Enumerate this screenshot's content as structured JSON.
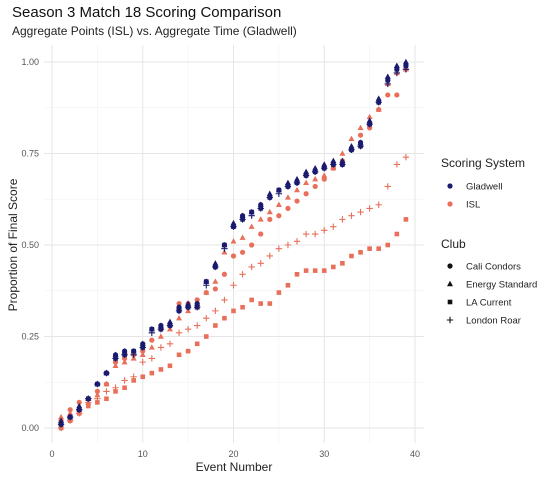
{
  "chart_data": {
    "type": "scatter",
    "title": "Season 3 Match 18 Scoring Comparison",
    "subtitle": "Aggregate Points (ISL) vs. Aggregate Time (Gladwell)",
    "xlabel": "Event Number",
    "ylabel": "Proportion of Final Score",
    "xlim": [
      0,
      40
    ],
    "ylim": [
      0,
      1
    ],
    "x_ticks": [
      0,
      10,
      20,
      30,
      40
    ],
    "y_ticks": [
      0,
      0.25,
      0.5,
      0.75,
      1
    ],
    "x_tick_labels": [
      "0",
      "10",
      "20",
      "30",
      "40"
    ],
    "y_tick_labels": [
      "0.00",
      "0.25",
      "0.50",
      "0.75",
      "1.00"
    ],
    "grid": true,
    "legend_position": "right",
    "color_legend": {
      "title": "Scoring System",
      "entries": [
        {
          "label": "Gladwell",
          "color": "#1a1a6e"
        },
        {
          "label": "ISL",
          "color": "#e8705a"
        }
      ]
    },
    "shape_legend": {
      "title": "Club",
      "entries": [
        {
          "label": "Cali Condors",
          "shape": "circle"
        },
        {
          "label": "Energy Standard",
          "shape": "triangle"
        },
        {
          "label": "LA Current",
          "shape": "square"
        },
        {
          "label": "London Roar",
          "shape": "plus"
        }
      ]
    },
    "series": [
      {
        "system": "Gladwell",
        "club": "Cali Condors",
        "x": [
          1,
          2,
          3,
          4,
          5,
          6,
          7,
          8,
          9,
          10,
          11,
          12,
          13,
          14,
          15,
          16,
          17,
          18,
          19,
          20,
          21,
          22,
          23,
          24,
          25,
          26,
          27,
          28,
          29,
          30,
          31,
          32,
          33,
          34,
          35,
          36,
          37,
          38,
          39
        ],
        "y": [
          0.01,
          0.03,
          0.05,
          0.08,
          0.12,
          0.15,
          0.2,
          0.21,
          0.21,
          0.23,
          0.27,
          0.28,
          0.28,
          0.33,
          0.33,
          0.34,
          0.4,
          0.44,
          0.5,
          0.55,
          0.58,
          0.59,
          0.61,
          0.63,
          0.65,
          0.66,
          0.67,
          0.69,
          0.7,
          0.71,
          0.72,
          0.72,
          0.76,
          0.78,
          0.83,
          0.89,
          0.95,
          0.98,
          0.99
        ]
      },
      {
        "system": "Gladwell",
        "club": "Energy Standard",
        "x": [
          1,
          2,
          3,
          4,
          5,
          6,
          7,
          8,
          9,
          10,
          11,
          12,
          13,
          14,
          15,
          16,
          17,
          18,
          19,
          20,
          21,
          22,
          23,
          24,
          25,
          26,
          27,
          28,
          29,
          30,
          31,
          32,
          33,
          34,
          35,
          36,
          37,
          38,
          39
        ],
        "y": [
          0.02,
          0.03,
          0.06,
          0.08,
          0.12,
          0.15,
          0.2,
          0.21,
          0.21,
          0.23,
          0.27,
          0.28,
          0.29,
          0.33,
          0.34,
          0.34,
          0.4,
          0.45,
          0.5,
          0.56,
          0.58,
          0.59,
          0.61,
          0.64,
          0.65,
          0.67,
          0.68,
          0.7,
          0.71,
          0.72,
          0.73,
          0.73,
          0.77,
          0.78,
          0.84,
          0.9,
          0.96,
          0.99,
          1.0
        ]
      },
      {
        "system": "Gladwell",
        "club": "LA Current",
        "x": [
          1,
          2,
          3,
          4,
          5,
          6,
          7,
          8,
          9,
          10,
          11,
          12,
          13,
          14,
          15,
          16,
          17,
          18,
          19,
          20,
          21,
          22,
          23,
          24,
          25,
          26,
          27,
          28,
          29,
          30,
          31,
          32,
          33,
          34,
          35,
          36,
          37,
          38,
          39
        ],
        "y": [
          0.01,
          0.03,
          0.05,
          0.08,
          0.12,
          0.15,
          0.19,
          0.2,
          0.21,
          0.22,
          0.27,
          0.27,
          0.28,
          0.32,
          0.33,
          0.33,
          0.4,
          0.44,
          0.5,
          0.55,
          0.57,
          0.59,
          0.6,
          0.63,
          0.65,
          0.66,
          0.67,
          0.69,
          0.7,
          0.71,
          0.72,
          0.72,
          0.76,
          0.77,
          0.83,
          0.89,
          0.95,
          0.98,
          0.99
        ]
      },
      {
        "system": "Gladwell",
        "club": "London Roar",
        "x": [
          1,
          2,
          3,
          4,
          5,
          6,
          7,
          8,
          9,
          10,
          11,
          12,
          13,
          14,
          15,
          16,
          17,
          18,
          19,
          20,
          21,
          22,
          23,
          24,
          25,
          26,
          27,
          28,
          29,
          30,
          31,
          32,
          33,
          34,
          35,
          36,
          37,
          38,
          39
        ],
        "y": [
          0.01,
          0.03,
          0.05,
          0.08,
          0.12,
          0.15,
          0.19,
          0.2,
          0.2,
          0.22,
          0.26,
          0.27,
          0.28,
          0.32,
          0.33,
          0.33,
          0.39,
          0.44,
          0.49,
          0.55,
          0.57,
          0.58,
          0.6,
          0.63,
          0.64,
          0.66,
          0.67,
          0.69,
          0.7,
          0.71,
          0.72,
          0.72,
          0.76,
          0.77,
          0.83,
          0.89,
          0.94,
          0.97,
          0.98
        ]
      },
      {
        "system": "ISL",
        "club": "Cali Condors",
        "x": [
          1,
          2,
          3,
          4,
          5,
          6,
          7,
          8,
          9,
          10,
          11,
          12,
          13,
          14,
          15,
          16,
          17,
          18,
          19,
          20,
          21,
          22,
          23,
          24,
          25,
          26,
          27,
          28,
          29,
          30,
          31,
          32,
          33,
          34,
          35,
          36,
          37,
          38,
          39
        ],
        "y": [
          0.02,
          0.05,
          0.07,
          0.08,
          0.1,
          0.12,
          0.18,
          0.19,
          0.2,
          0.21,
          0.24,
          0.27,
          0.28,
          0.34,
          0.34,
          0.35,
          0.37,
          0.38,
          0.42,
          0.47,
          0.48,
          0.5,
          0.53,
          0.57,
          0.58,
          0.6,
          0.62,
          0.64,
          0.66,
          0.68,
          0.71,
          0.73,
          0.76,
          0.8,
          0.82,
          0.87,
          0.91,
          0.91,
          0.98
        ]
      },
      {
        "system": "ISL",
        "club": "Energy Standard",
        "x": [
          1,
          2,
          3,
          4,
          5,
          6,
          7,
          8,
          9,
          10,
          11,
          12,
          13,
          14,
          15,
          16,
          17,
          18,
          19,
          20,
          21,
          22,
          23,
          24,
          25,
          26,
          27,
          28,
          29,
          30,
          31,
          32,
          33,
          34,
          35,
          36,
          37,
          38,
          39
        ],
        "y": [
          0.03,
          0.04,
          0.05,
          0.07,
          0.09,
          0.12,
          0.17,
          0.18,
          0.19,
          0.2,
          0.22,
          0.25,
          0.27,
          0.3,
          0.32,
          0.33,
          0.37,
          0.4,
          0.48,
          0.51,
          0.52,
          0.55,
          0.57,
          0.59,
          0.61,
          0.63,
          0.65,
          0.67,
          0.68,
          0.69,
          0.71,
          0.75,
          0.79,
          0.82,
          0.85,
          0.87,
          0.94,
          0.97,
          0.98
        ]
      },
      {
        "system": "ISL",
        "club": "LA Current",
        "x": [
          1,
          2,
          3,
          4,
          5,
          6,
          7,
          8,
          9,
          10,
          11,
          12,
          13,
          14,
          15,
          16,
          17,
          18,
          19,
          20,
          21,
          22,
          23,
          24,
          25,
          26,
          27,
          28,
          29,
          30,
          31,
          32,
          33,
          34,
          35,
          36,
          37,
          38,
          39
        ],
        "y": [
          0.0,
          0.02,
          0.04,
          0.06,
          0.07,
          0.08,
          0.1,
          0.11,
          0.13,
          0.14,
          0.15,
          0.16,
          0.17,
          0.2,
          0.21,
          0.23,
          0.25,
          0.28,
          0.3,
          0.32,
          0.33,
          0.35,
          0.34,
          0.34,
          0.37,
          0.39,
          0.42,
          0.43,
          0.43,
          0.43,
          0.44,
          0.45,
          0.47,
          0.48,
          0.49,
          0.49,
          0.5,
          0.53,
          0.57
        ]
      },
      {
        "system": "ISL",
        "club": "London Roar",
        "x": [
          1,
          2,
          3,
          4,
          5,
          6,
          7,
          8,
          9,
          10,
          11,
          12,
          13,
          14,
          15,
          16,
          17,
          18,
          19,
          20,
          21,
          22,
          23,
          24,
          25,
          26,
          27,
          28,
          29,
          30,
          31,
          32,
          33,
          34,
          35,
          36,
          37,
          38,
          39
        ],
        "y": [
          0.0,
          0.02,
          0.04,
          0.07,
          0.08,
          0.1,
          0.11,
          0.13,
          0.14,
          0.18,
          0.19,
          0.22,
          0.23,
          0.26,
          0.27,
          0.28,
          0.3,
          0.32,
          0.35,
          0.39,
          0.42,
          0.44,
          0.45,
          0.47,
          0.49,
          0.5,
          0.51,
          0.53,
          0.53,
          0.54,
          0.55,
          0.57,
          0.58,
          0.59,
          0.6,
          0.61,
          0.66,
          0.72,
          0.74
        ]
      }
    ]
  }
}
